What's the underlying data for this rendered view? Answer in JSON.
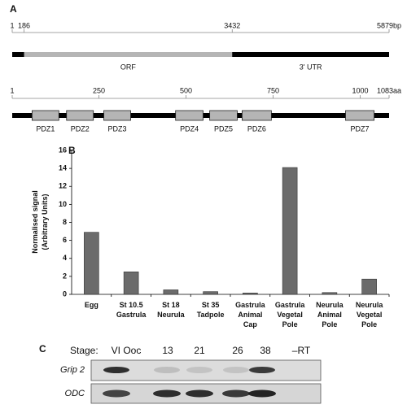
{
  "panel_labels": [
    "A",
    "B",
    "C"
  ],
  "panel_a": {
    "transcript": {
      "lim": [
        1,
        5879
      ],
      "ticks": [
        1,
        186,
        3432,
        {
          "value": 5879,
          "label": "5879bp"
        }
      ],
      "orf": [
        186,
        3432
      ],
      "orf_label": "ORF",
      "utr_label": "3' UTR"
    },
    "protein": {
      "lim": [
        1,
        1083
      ],
      "ticks": [
        1,
        250,
        500,
        750,
        1000,
        {
          "value": 1083,
          "label": "1083aa"
        }
      ],
      "domains": [
        {
          "name": "PDZ1",
          "start": 58,
          "end": 135
        },
        {
          "name": "PDZ2",
          "start": 157,
          "end": 234
        },
        {
          "name": "PDZ3",
          "start": 264,
          "end": 341
        },
        {
          "name": "PDZ4",
          "start": 470,
          "end": 549
        },
        {
          "name": "PDZ5",
          "start": 568,
          "end": 647
        },
        {
          "name": "PDZ6",
          "start": 661,
          "end": 745
        },
        {
          "name": "PDZ7",
          "start": 958,
          "end": 1040
        }
      ]
    }
  },
  "chart_data": {
    "type": "bar",
    "y_label": [
      "Normalised signal",
      "(Arbitrary Units)"
    ],
    "categories": [
      [
        "Egg"
      ],
      [
        "St 10.5",
        "Gastrula"
      ],
      [
        "St 18",
        "Neurula"
      ],
      [
        "St 35",
        "Tadpole"
      ],
      [
        "Gastrula",
        "Animal",
        "Cap"
      ],
      [
        "Gastrula",
        "Vegetal",
        "Pole"
      ],
      [
        "Neurula",
        "Animal",
        "Pole"
      ],
      [
        "Neurula",
        "Vegetal",
        "Pole"
      ]
    ],
    "values": [
      6.9,
      2.5,
      0.5,
      0.3,
      0.15,
      14.1,
      0.2,
      1.7
    ],
    "color": "#6b6b6b",
    "ylim": [
      0,
      16
    ],
    "yticks": [
      0,
      2,
      4,
      6,
      8,
      10,
      12,
      14,
      16
    ],
    "grid": false
  },
  "panel_c": {
    "stage_label": "Stage:",
    "lanes": [
      "VI Ooc",
      "13",
      "21",
      "26",
      "38",
      "–RT"
    ],
    "rows": [
      "Grip 2",
      "ODC"
    ]
  }
}
